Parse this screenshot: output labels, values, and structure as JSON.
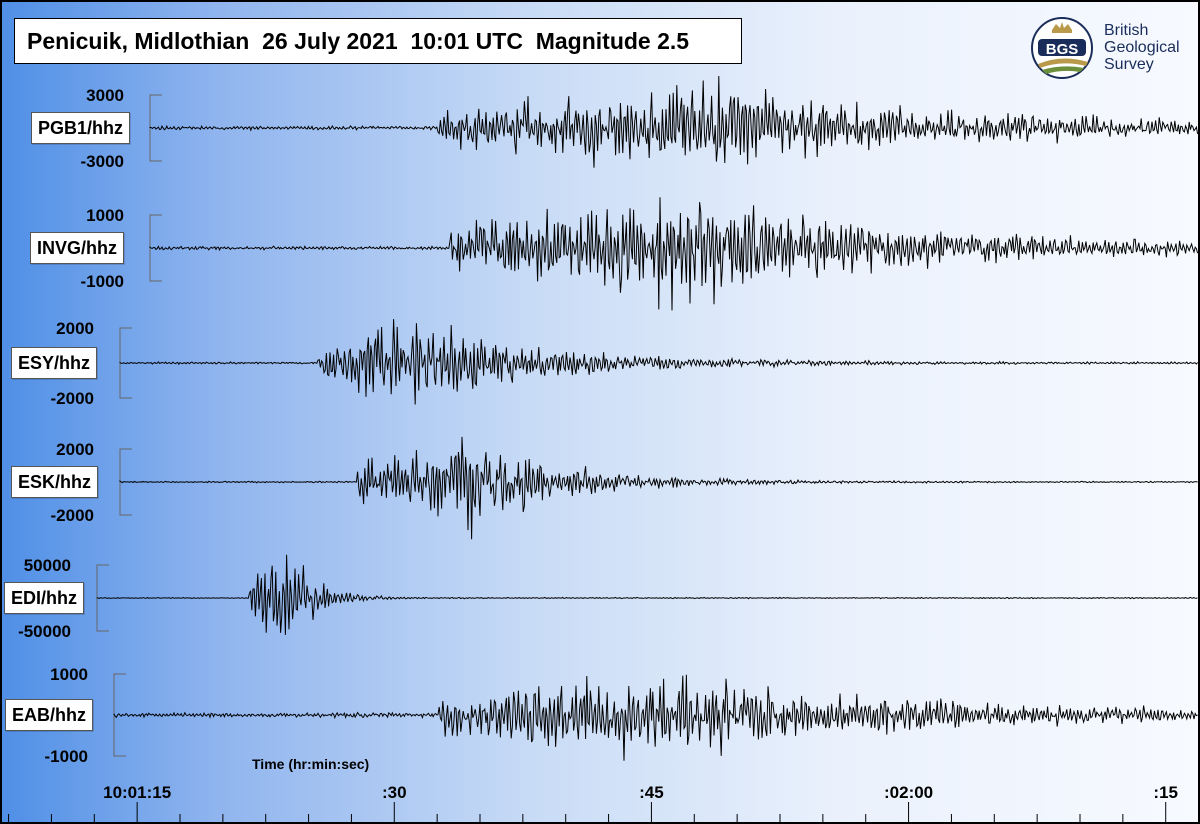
{
  "title": "Penicuik, Midlothian  26 July 2021  10:01 UTC  Magnitude 2.5",
  "logo": {
    "abbr": "BGS",
    "org_name": "British\nGeological\nSurvey",
    "colors": {
      "navy": "#1a2d5a",
      "gold": "#b89a4a",
      "green": "#6b8f3a"
    }
  },
  "chart_data": {
    "type": "line",
    "title": "Penicuik, Midlothian  26 July 2021  10:01 UTC  Magnitude 2.5",
    "xlabel": "Time (hr:min:sec)",
    "x_ticks": [
      "10:01:15",
      ":30",
      ":45",
      ":02:00",
      ":15"
    ],
    "x_tick_seconds": [
      75,
      90,
      105,
      120,
      135
    ],
    "xlim_seconds": [
      67,
      137
    ],
    "line_color": "#000000",
    "series": [
      {
        "name": "PGB1/hhz",
        "ymax_label": "3000",
        "ymin_label": "-3000",
        "onset_s": 92.5,
        "peak_s": 106.5,
        "decay_s": 16,
        "noise_frac": 0.03,
        "quiet_frac": 0.04,
        "seed": 11
      },
      {
        "name": "INVG/hhz",
        "ymax_label": "1000",
        "ymin_label": "-1000",
        "onset_s": 93.2,
        "peak_s": 107.5,
        "decay_s": 13,
        "noise_frac": 0.02,
        "quiet_frac": 0.03,
        "seed": 23
      },
      {
        "name": "ESY/hhz",
        "ymax_label": "2000",
        "ymin_label": "-2000",
        "onset_s": 85.5,
        "peak_s": 91.8,
        "decay_s": 7,
        "noise_frac": 0.02,
        "quiet_frac": 0.02,
        "seed": 37
      },
      {
        "name": "ESK/hhz",
        "ymax_label": "2000",
        "ymin_label": "-2000",
        "onset_s": 87.8,
        "peak_s": 94.5,
        "decay_s": 5,
        "noise_frac": 0.015,
        "quiet_frac": 0.015,
        "seed": 41
      },
      {
        "name": "EDI/hhz",
        "ymax_label": "50000",
        "ymin_label": "-50000",
        "onset_s": 81.5,
        "peak_s": 83.9,
        "decay_s": 1.5,
        "noise_frac": 0.01,
        "quiet_frac": 0.008,
        "seed": 53
      },
      {
        "name": "EAB/hhz",
        "ymax_label": "1000",
        "ymin_label": "-1000",
        "onset_s": 92.6,
        "peak_s": 104.5,
        "decay_s": 15,
        "noise_frac": 0.03,
        "quiet_frac": 0.05,
        "seed": 67
      }
    ]
  }
}
